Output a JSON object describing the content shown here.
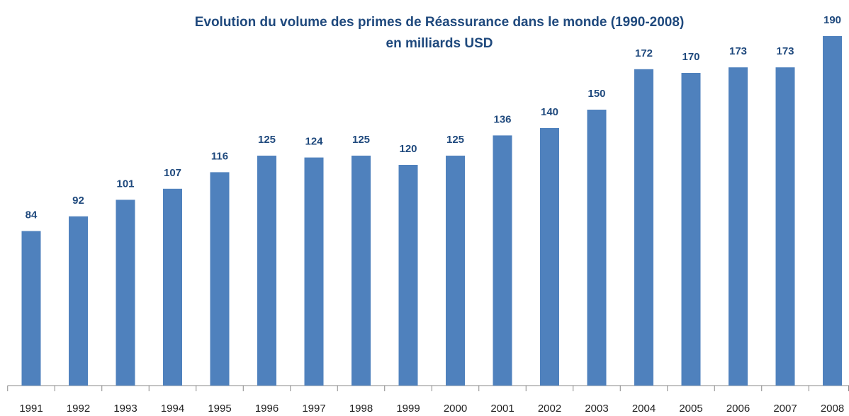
{
  "chart_data": {
    "type": "bar",
    "title": "Evolution du volume des primes de Réassurance dans le monde (1990-2008)",
    "subtitle": "en milliards USD",
    "categories": [
      "1991",
      "1992",
      "1993",
      "1994",
      "1995",
      "1996",
      "1997",
      "1998",
      "1999",
      "2000",
      "2001",
      "2002",
      "2003",
      "2004",
      "2005",
      "2006",
      "2007",
      "2008"
    ],
    "values": [
      84,
      92,
      101,
      107,
      116,
      125,
      124,
      125,
      120,
      125,
      136,
      140,
      150,
      172,
      170,
      173,
      173,
      190
    ],
    "color": "#4f81bd",
    "ylim": [
      0,
      200
    ]
  }
}
